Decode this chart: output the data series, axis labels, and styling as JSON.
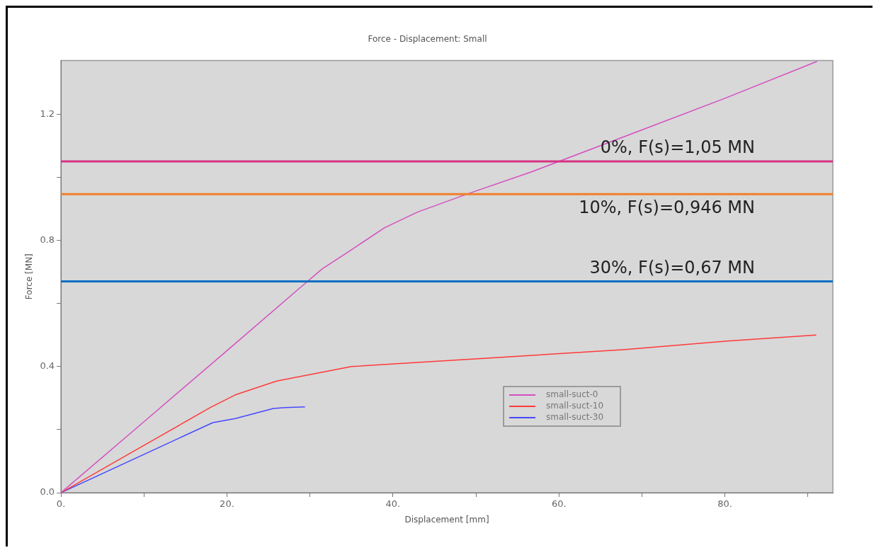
{
  "chart_data": {
    "type": "line",
    "title": "Force - Displacement: Small",
    "xlabel": "Displacement [mm]",
    "ylabel": "Force [MN]",
    "xlim": [
      0,
      93
    ],
    "xticks": [
      {
        "value": 0,
        "label": "0."
      },
      {
        "value": 10,
        "label": null
      },
      {
        "value": 20,
        "label": "20."
      },
      {
        "value": 30,
        "label": null
      },
      {
        "value": 40,
        "label": "40."
      },
      {
        "value": 50,
        "label": null
      },
      {
        "value": 60,
        "label": "60."
      },
      {
        "value": 70,
        "label": null
      },
      {
        "value": 80,
        "label": "80."
      },
      {
        "value": 90,
        "label": null
      }
    ],
    "ylim": [
      0,
      1.37
    ],
    "yticks": [
      {
        "value": 0,
        "label": "0.0"
      },
      {
        "value": 0.2,
        "label": null
      },
      {
        "value": 0.4,
        "label": "0.4"
      },
      {
        "value": 0.6,
        "label": null
      },
      {
        "value": 0.8,
        "label": "0.8"
      },
      {
        "value": 1.0,
        "label": null
      },
      {
        "value": 1.2,
        "label": "1.2"
      }
    ],
    "grid": false,
    "legend": "bottom",
    "marker": "none",
    "line_style": "solid",
    "series": [
      {
        "name": "small-suct-0",
        "color": "#d450c0",
        "x": [
          0,
          10,
          20,
          29,
          31.5,
          35,
          39,
          43,
          49.3,
          56.7,
          70,
          80,
          91.1
        ],
        "values": [
          0,
          0.225,
          0.45,
          0.654,
          0.71,
          0.77,
          0.84,
          0.89,
          0.95,
          1.017,
          1.15,
          1.25,
          1.367
        ]
      },
      {
        "name": "small-suct-10",
        "color": "#ff3a3a",
        "x": [
          0,
          10,
          18,
          21,
          26,
          35,
          45,
          68,
          80,
          91
        ],
        "values": [
          0,
          0.15,
          0.27,
          0.31,
          0.354,
          0.4,
          0.416,
          0.454,
          0.48,
          0.5
        ]
      },
      {
        "name": "small-suct-30",
        "color": "#4848ff",
        "x": [
          0,
          13,
          18.3,
          21,
          25.6,
          27,
          29.4
        ],
        "values": [
          0,
          0.158,
          0.222,
          0.235,
          0.267,
          0.27,
          0.272
        ]
      }
    ],
    "ref_lines": [
      {
        "axis": "y",
        "value": 1.05,
        "label": "0%, F(s)=1,05 MN",
        "color": "#d63384"
      },
      {
        "axis": "y",
        "value": 0.946,
        "label": "10%, F(s)=0,946 MN",
        "color": "#f07f2a"
      },
      {
        "axis": "y",
        "value": 0.67,
        "label": "30%, F(s)=0,67 MN",
        "color": "#0b6fc4"
      }
    ]
  }
}
